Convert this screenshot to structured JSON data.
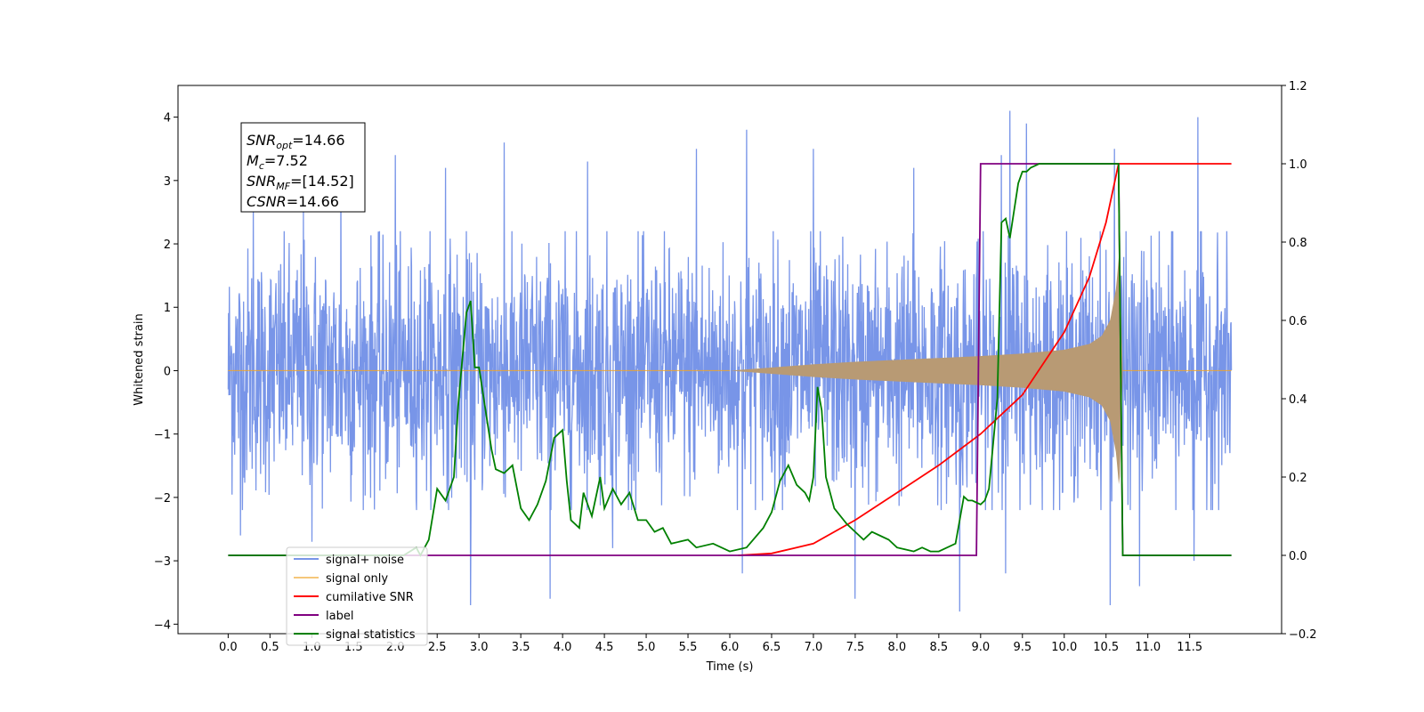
{
  "chart_data": {
    "type": "line",
    "xlabel": "Time (s)",
    "ylabel_left": "Whitened strain",
    "ylabel_right": "",
    "xlim": [
      -0.6,
      12.6
    ],
    "ylim_left": [
      -4.15,
      4.5
    ],
    "ylim_right": [
      -0.2,
      1.2
    ],
    "x_ticks": [
      0.0,
      0.5,
      1.0,
      1.5,
      2.0,
      2.5,
      3.0,
      3.5,
      4.0,
      4.5,
      5.0,
      5.5,
      6.0,
      6.5,
      7.0,
      7.5,
      8.0,
      8.5,
      9.0,
      9.5,
      10.0,
      10.5,
      11.0,
      11.5
    ],
    "x_tick_labels": [
      "0.0",
      "0.5",
      "1.0",
      "1.5",
      "2.0",
      "2.5",
      "3.0",
      "3.5",
      "4.0",
      "4.5",
      "5.0",
      "5.5",
      "6.0",
      "6.5",
      "7.0",
      "7.5",
      "8.0",
      "8.5",
      "9.0",
      "9.5",
      "10.0",
      "10.5",
      "11.0",
      "11.5"
    ],
    "y_left_ticks": [
      -4,
      -3,
      -2,
      -1,
      0,
      1,
      2,
      3,
      4
    ],
    "y_left_tick_labels": [
      "−4",
      "−3",
      "−2",
      "−1",
      "0",
      "1",
      "2",
      "3",
      "4"
    ],
    "y_right_ticks": [
      -0.2,
      0.0,
      0.2,
      0.4,
      0.6,
      0.8,
      1.0,
      1.2
    ],
    "y_right_tick_labels": [
      "−0.2",
      "0.0",
      "0.2",
      "0.4",
      "0.6",
      "0.8",
      "1.0",
      "1.2"
    ],
    "legend_position": "lower-left",
    "annotation_box": {
      "position": "upper-left",
      "lines": [
        {
          "sym": "SNR",
          "sub": "opt",
          "rest": "=14.66"
        },
        {
          "sym": "M",
          "sub": "c",
          "rest": "=7.52"
        },
        {
          "sym": "SNR",
          "sub": "MF",
          "rest": "=[14.52]"
        },
        {
          "sym": "CSNR",
          "sub": "",
          "rest": "=14.66"
        }
      ]
    },
    "series": [
      {
        "name": "signal+ noise",
        "axis": "left",
        "color": "#7895e8",
        "style": "noise_band",
        "x_range": [
          0.0,
          12.0
        ],
        "typical_range": [
          -1.5,
          1.5
        ],
        "peaks_up": [
          [
            0.3,
            2.6
          ],
          [
            0.9,
            2.5
          ],
          [
            1.35,
            3.1
          ],
          [
            2.0,
            3.4
          ],
          [
            2.6,
            3.2
          ],
          [
            3.3,
            3.6
          ],
          [
            4.3,
            3.3
          ],
          [
            5.6,
            3.5
          ],
          [
            6.2,
            3.8
          ],
          [
            7.0,
            3.5
          ],
          [
            8.2,
            3.2
          ],
          [
            9.25,
            3.4
          ],
          [
            9.35,
            4.1
          ],
          [
            9.55,
            3.9
          ],
          [
            10.6,
            3.5
          ],
          [
            11.6,
            4.0
          ]
        ],
        "peaks_down": [
          [
            0.15,
            -2.6
          ],
          [
            1.0,
            -2.7
          ],
          [
            2.9,
            -3.7
          ],
          [
            3.85,
            -3.6
          ],
          [
            4.6,
            -2.8
          ],
          [
            6.15,
            -3.2
          ],
          [
            7.5,
            -3.6
          ],
          [
            8.75,
            -3.8
          ],
          [
            9.3,
            -3.2
          ],
          [
            10.55,
            -3.7
          ],
          [
            10.9,
            -3.4
          ],
          [
            11.55,
            -3.0
          ]
        ]
      },
      {
        "name": "signal only",
        "axis": "left",
        "color": "#f5a623",
        "fill_color": "#b89a74",
        "style": "chirp_envelope",
        "envelope": {
          "x": [
            0.0,
            6.0,
            6.5,
            7.0,
            7.5,
            8.0,
            8.5,
            9.0,
            9.5,
            10.0,
            10.3,
            10.45,
            10.55,
            10.62,
            10.66,
            10.7,
            12.0
          ],
          "y": [
            0.0,
            0.0,
            0.05,
            0.1,
            0.14,
            0.17,
            0.2,
            0.23,
            0.27,
            0.33,
            0.42,
            0.55,
            0.8,
            1.3,
            1.9,
            0.0,
            0.0
          ]
        }
      },
      {
        "name": "cumilative SNR",
        "axis": "right",
        "color": "#ff0000",
        "x": [
          6.1,
          6.5,
          7.0,
          7.5,
          8.0,
          8.5,
          9.0,
          9.5,
          10.0,
          10.3,
          10.5,
          10.62,
          10.65,
          12.0
        ],
        "y": [
          0.0,
          0.005,
          0.03,
          0.09,
          0.16,
          0.23,
          0.31,
          0.41,
          0.57,
          0.71,
          0.85,
          0.97,
          1.0,
          1.0
        ]
      },
      {
        "name": "label",
        "axis": "right",
        "color": "#800080",
        "x": [
          0.0,
          8.95,
          9.0,
          10.65,
          10.7,
          12.0
        ],
        "y": [
          0.0,
          0.0,
          1.0,
          1.0,
          0.0,
          0.0
        ]
      },
      {
        "name": "signal statistics",
        "axis": "right",
        "color": "#008000",
        "x": [
          0.0,
          2.1,
          2.25,
          2.3,
          2.4,
          2.5,
          2.6,
          2.7,
          2.75,
          2.85,
          2.9,
          2.95,
          3.0,
          3.05,
          3.15,
          3.2,
          3.3,
          3.4,
          3.5,
          3.6,
          3.7,
          3.8,
          3.9,
          4.0,
          4.05,
          4.1,
          4.2,
          4.25,
          4.35,
          4.45,
          4.5,
          4.6,
          4.7,
          4.8,
          4.9,
          5.0,
          5.1,
          5.2,
          5.3,
          5.5,
          5.6,
          5.8,
          6.0,
          6.2,
          6.4,
          6.5,
          6.6,
          6.7,
          6.8,
          6.9,
          6.95,
          7.0,
          7.05,
          7.1,
          7.15,
          7.25,
          7.4,
          7.6,
          7.7,
          7.8,
          7.9,
          8.0,
          8.2,
          8.3,
          8.4,
          8.5,
          8.6,
          8.7,
          8.8,
          8.85,
          8.9,
          9.0,
          9.05,
          9.1,
          9.2,
          9.25,
          9.3,
          9.35,
          9.4,
          9.45,
          9.5,
          9.55,
          9.6,
          9.7,
          9.8,
          9.9,
          10.0,
          10.2,
          10.4,
          10.5,
          10.6,
          10.65,
          10.7,
          12.0
        ],
        "y": [
          0.0,
          0.0,
          0.02,
          0.0,
          0.04,
          0.17,
          0.14,
          0.2,
          0.38,
          0.62,
          0.65,
          0.48,
          0.48,
          0.41,
          0.27,
          0.22,
          0.21,
          0.23,
          0.12,
          0.09,
          0.13,
          0.19,
          0.3,
          0.32,
          0.19,
          0.09,
          0.07,
          0.16,
          0.1,
          0.2,
          0.12,
          0.17,
          0.13,
          0.16,
          0.09,
          0.09,
          0.06,
          0.07,
          0.03,
          0.04,
          0.02,
          0.03,
          0.01,
          0.02,
          0.07,
          0.11,
          0.19,
          0.23,
          0.18,
          0.16,
          0.14,
          0.2,
          0.43,
          0.37,
          0.2,
          0.12,
          0.08,
          0.04,
          0.06,
          0.05,
          0.04,
          0.02,
          0.01,
          0.02,
          0.01,
          0.01,
          0.02,
          0.03,
          0.15,
          0.14,
          0.14,
          0.13,
          0.14,
          0.17,
          0.4,
          0.85,
          0.86,
          0.81,
          0.88,
          0.95,
          0.98,
          0.98,
          0.99,
          1.0,
          1.0,
          1.0,
          1.0,
          1.0,
          1.0,
          1.0,
          1.0,
          1.0,
          0.0,
          0.0
        ]
      },
      {
        "name": "signal only",
        "legend_only": true,
        "axis": "left",
        "color": "#bfbfbf",
        "note_hidden": true
      }
    ],
    "legend_entries": [
      {
        "label": "signal+ noise",
        "color": "#7895e8"
      },
      {
        "label": "signal only",
        "color": "#f5c77a"
      },
      {
        "label": "cumilative SNR",
        "color": "#ff0000"
      },
      {
        "label": "label",
        "color": "#800080"
      },
      {
        "label": "signal statistics",
        "color": "#008000"
      }
    ]
  }
}
